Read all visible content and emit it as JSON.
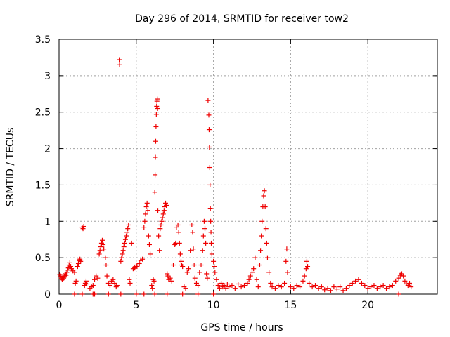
{
  "chart_data": {
    "type": "scatter",
    "title": "Day 296 of 2014, SRMTID for receiver tow2",
    "xlabel": "GPS time / hours",
    "ylabel": "SRMTID / TECUs",
    "xlim": [
      0,
      24.5
    ],
    "ylim": [
      0,
      3.5
    ],
    "x_ticks": [
      0,
      5,
      10,
      15,
      20
    ],
    "x_tick_labels": [
      "0",
      "5",
      "10",
      "15",
      "20"
    ],
    "y_ticks": [
      0,
      0.5,
      1,
      1.5,
      2,
      2.5,
      3,
      3.5
    ],
    "y_tick_labels": [
      "0",
      "0.5",
      "1",
      "1.5",
      "2",
      "2.5",
      "3",
      "3.5"
    ],
    "grid": true,
    "marker": "+",
    "series": [
      {
        "name": "SRMTID",
        "color": "#ee0000",
        "points": [
          [
            0.05,
            0.27
          ],
          [
            0.1,
            0.25
          ],
          [
            0.15,
            0.22
          ],
          [
            0.2,
            0.2
          ],
          [
            0.25,
            0.24
          ],
          [
            0.3,
            0.22
          ],
          [
            0.35,
            0.25
          ],
          [
            0.4,
            0.28
          ],
          [
            0.45,
            0.26
          ],
          [
            0.5,
            0.3
          ],
          [
            0.55,
            0.33
          ],
          [
            0.6,
            0.36
          ],
          [
            0.65,
            0.4
          ],
          [
            0.7,
            0.43
          ],
          [
            0.75,
            0.38
          ],
          [
            0.8,
            0.35
          ],
          [
            0.9,
            0.32
          ],
          [
            1.0,
            0.3
          ],
          [
            1.05,
            0.15
          ],
          [
            1.1,
            0.18
          ],
          [
            1.2,
            0.38
          ],
          [
            1.25,
            0.42
          ],
          [
            1.3,
            0.46
          ],
          [
            1.35,
            0.48
          ],
          [
            1.4,
            0.45
          ],
          [
            1.5,
            0.92
          ],
          [
            1.55,
            0.9
          ],
          [
            1.6,
            0.93
          ],
          [
            1.65,
            0.12
          ],
          [
            1.7,
            0.15
          ],
          [
            1.75,
            0.18
          ],
          [
            1.8,
            0.14
          ],
          [
            2.0,
            0.08
          ],
          [
            2.1,
            0.1
          ],
          [
            2.2,
            0.12
          ],
          [
            2.3,
            0.2
          ],
          [
            2.4,
            0.25
          ],
          [
            2.5,
            0.22
          ],
          [
            2.6,
            0.55
          ],
          [
            2.65,
            0.6
          ],
          [
            2.7,
            0.65
          ],
          [
            2.75,
            0.7
          ],
          [
            2.8,
            0.74
          ],
          [
            2.85,
            0.68
          ],
          [
            2.9,
            0.62
          ],
          [
            3.0,
            0.5
          ],
          [
            3.05,
            0.4
          ],
          [
            3.1,
            0.25
          ],
          [
            3.2,
            0.15
          ],
          [
            3.3,
            0.12
          ],
          [
            3.4,
            0.18
          ],
          [
            3.5,
            0.2
          ],
          [
            3.6,
            0.15
          ],
          [
            3.7,
            0.1
          ],
          [
            3.75,
            0.12
          ],
          [
            3.9,
            3.22
          ],
          [
            3.92,
            3.15
          ],
          [
            4.0,
            0.45
          ],
          [
            4.05,
            0.5
          ],
          [
            4.1,
            0.55
          ],
          [
            4.15,
            0.6
          ],
          [
            4.2,
            0.65
          ],
          [
            4.25,
            0.7
          ],
          [
            4.3,
            0.75
          ],
          [
            4.35,
            0.8
          ],
          [
            4.4,
            0.85
          ],
          [
            4.45,
            0.9
          ],
          [
            4.5,
            0.95
          ],
          [
            4.55,
            0.2
          ],
          [
            4.6,
            0.15
          ],
          [
            4.7,
            0.7
          ],
          [
            4.8,
            0.35
          ],
          [
            4.9,
            0.36
          ],
          [
            5.0,
            0.4
          ],
          [
            5.05,
            0.38
          ],
          [
            5.2,
            0.42
          ],
          [
            5.3,
            0.46
          ],
          [
            5.4,
            0.48
          ],
          [
            5.5,
            0.92
          ],
          [
            5.55,
            1.0
          ],
          [
            5.6,
            1.1
          ],
          [
            5.65,
            1.2
          ],
          [
            5.7,
            1.25
          ],
          [
            5.75,
            1.15
          ],
          [
            5.8,
            0.8
          ],
          [
            5.85,
            0.68
          ],
          [
            5.9,
            0.55
          ],
          [
            6.0,
            0.12
          ],
          [
            6.05,
            0.08
          ],
          [
            6.1,
            0.2
          ],
          [
            6.15,
            0.18
          ],
          [
            6.2,
            1.4
          ],
          [
            6.22,
            1.64
          ],
          [
            6.24,
            1.88
          ],
          [
            6.26,
            2.1
          ],
          [
            6.28,
            2.3
          ],
          [
            6.3,
            2.47
          ],
          [
            6.32,
            2.58
          ],
          [
            6.34,
            2.65
          ],
          [
            6.36,
            2.68
          ],
          [
            6.38,
            2.55
          ],
          [
            6.4,
            1.15
          ],
          [
            6.45,
            0.8
          ],
          [
            6.5,
            0.6
          ],
          [
            6.55,
            0.9
          ],
          [
            6.6,
            0.95
          ],
          [
            6.65,
            1.0
          ],
          [
            6.7,
            1.05
          ],
          [
            6.75,
            1.1
          ],
          [
            6.8,
            1.15
          ],
          [
            6.85,
            1.2
          ],
          [
            6.9,
            1.25
          ],
          [
            6.95,
            1.22
          ],
          [
            7.0,
            0.28
          ],
          [
            7.05,
            0.25
          ],
          [
            7.1,
            0.2
          ],
          [
            7.2,
            0.22
          ],
          [
            7.3,
            0.18
          ],
          [
            7.4,
            0.4
          ],
          [
            7.5,
            0.68
          ],
          [
            7.55,
            0.7
          ],
          [
            7.6,
            0.92
          ],
          [
            7.7,
            0.95
          ],
          [
            7.75,
            0.85
          ],
          [
            7.8,
            0.7
          ],
          [
            7.85,
            0.55
          ],
          [
            7.9,
            0.45
          ],
          [
            7.95,
            0.4
          ],
          [
            8.0,
            0.38
          ],
          [
            8.1,
            0.1
          ],
          [
            8.2,
            0.08
          ],
          [
            8.3,
            0.3
          ],
          [
            8.4,
            0.35
          ],
          [
            8.5,
            0.6
          ],
          [
            8.6,
            0.95
          ],
          [
            8.65,
            0.85
          ],
          [
            8.7,
            0.62
          ],
          [
            8.75,
            0.4
          ],
          [
            8.8,
            0.22
          ],
          [
            8.9,
            0.15
          ],
          [
            9.0,
            0.12
          ],
          [
            9.1,
            0.3
          ],
          [
            9.2,
            0.4
          ],
          [
            9.3,
            0.6
          ],
          [
            9.35,
            0.8
          ],
          [
            9.4,
            1.0
          ],
          [
            9.45,
            0.9
          ],
          [
            9.5,
            0.7
          ],
          [
            9.55,
            0.28
          ],
          [
            9.6,
            0.22
          ],
          [
            9.65,
            2.66
          ],
          [
            9.7,
            2.46
          ],
          [
            9.72,
            2.26
          ],
          [
            9.74,
            2.02
          ],
          [
            9.76,
            1.74
          ],
          [
            9.78,
            1.5
          ],
          [
            9.8,
            1.18
          ],
          [
            9.82,
            1.0
          ],
          [
            9.84,
            0.85
          ],
          [
            9.86,
            0.7
          ],
          [
            9.9,
            0.55
          ],
          [
            10.0,
            0.45
          ],
          [
            10.05,
            0.38
          ],
          [
            10.1,
            0.3
          ],
          [
            10.2,
            0.2
          ],
          [
            10.3,
            0.12
          ],
          [
            10.4,
            0.08
          ],
          [
            10.5,
            0.15
          ],
          [
            10.6,
            0.1
          ],
          [
            10.7,
            0.12
          ],
          [
            10.8,
            0.08
          ],
          [
            10.9,
            0.14
          ],
          [
            11.0,
            0.1
          ],
          [
            11.2,
            0.12
          ],
          [
            11.4,
            0.08
          ],
          [
            11.6,
            0.14
          ],
          [
            11.8,
            0.1
          ],
          [
            12.0,
            0.12
          ],
          [
            12.2,
            0.15
          ],
          [
            12.3,
            0.2
          ],
          [
            12.4,
            0.25
          ],
          [
            12.5,
            0.3
          ],
          [
            12.6,
            0.35
          ],
          [
            12.7,
            0.5
          ],
          [
            12.8,
            0.2
          ],
          [
            12.9,
            0.1
          ],
          [
            13.0,
            0.4
          ],
          [
            13.05,
            0.6
          ],
          [
            13.1,
            0.8
          ],
          [
            13.15,
            1.0
          ],
          [
            13.2,
            1.2
          ],
          [
            13.25,
            1.35
          ],
          [
            13.3,
            1.42
          ],
          [
            13.35,
            1.2
          ],
          [
            13.4,
            0.9
          ],
          [
            13.45,
            0.7
          ],
          [
            13.5,
            0.5
          ],
          [
            13.6,
            0.3
          ],
          [
            13.7,
            0.15
          ],
          [
            13.8,
            0.1
          ],
          [
            14.0,
            0.08
          ],
          [
            14.2,
            0.12
          ],
          [
            14.4,
            0.1
          ],
          [
            14.6,
            0.15
          ],
          [
            14.7,
            0.45
          ],
          [
            14.75,
            0.62
          ],
          [
            14.8,
            0.3
          ],
          [
            15.0,
            0.1
          ],
          [
            15.2,
            0.08
          ],
          [
            15.4,
            0.12
          ],
          [
            15.6,
            0.1
          ],
          [
            15.8,
            0.18
          ],
          [
            15.9,
            0.25
          ],
          [
            16.0,
            0.35
          ],
          [
            16.05,
            0.45
          ],
          [
            16.1,
            0.38
          ],
          [
            16.2,
            0.15
          ],
          [
            16.4,
            0.1
          ],
          [
            16.6,
            0.12
          ],
          [
            16.8,
            0.08
          ],
          [
            17.0,
            0.1
          ],
          [
            17.2,
            0.06
          ],
          [
            17.4,
            0.08
          ],
          [
            17.6,
            0.05
          ],
          [
            17.8,
            0.1
          ],
          [
            18.0,
            0.07
          ],
          [
            18.2,
            0.1
          ],
          [
            18.4,
            0.05
          ],
          [
            18.6,
            0.08
          ],
          [
            18.8,
            0.12
          ],
          [
            19.0,
            0.15
          ],
          [
            19.2,
            0.18
          ],
          [
            19.4,
            0.2
          ],
          [
            19.6,
            0.15
          ],
          [
            19.8,
            0.12
          ],
          [
            20.0,
            0.08
          ],
          [
            20.2,
            0.1
          ],
          [
            20.4,
            0.12
          ],
          [
            20.6,
            0.08
          ],
          [
            20.8,
            0.1
          ],
          [
            21.0,
            0.12
          ],
          [
            21.2,
            0.08
          ],
          [
            21.4,
            0.1
          ],
          [
            21.6,
            0.12
          ],
          [
            21.8,
            0.18
          ],
          [
            22.0,
            0.22
          ],
          [
            22.1,
            0.26
          ],
          [
            22.2,
            0.28
          ],
          [
            22.3,
            0.25
          ],
          [
            22.4,
            0.18
          ],
          [
            22.5,
            0.14
          ],
          [
            22.6,
            0.12
          ],
          [
            22.7,
            0.15
          ],
          [
            22.8,
            0.1
          ],
          [
            1.0,
            0
          ],
          [
            1.5,
            0
          ],
          [
            2.2,
            0
          ],
          [
            2.3,
            0
          ],
          [
            3.2,
            0
          ],
          [
            4.0,
            0
          ],
          [
            5.0,
            0
          ],
          [
            5.5,
            0
          ],
          [
            6.2,
            0
          ],
          [
            7.0,
            0
          ],
          [
            8.0,
            0
          ],
          [
            9.0,
            0
          ],
          [
            10.0,
            0
          ],
          [
            22.0,
            0
          ]
        ]
      }
    ]
  }
}
